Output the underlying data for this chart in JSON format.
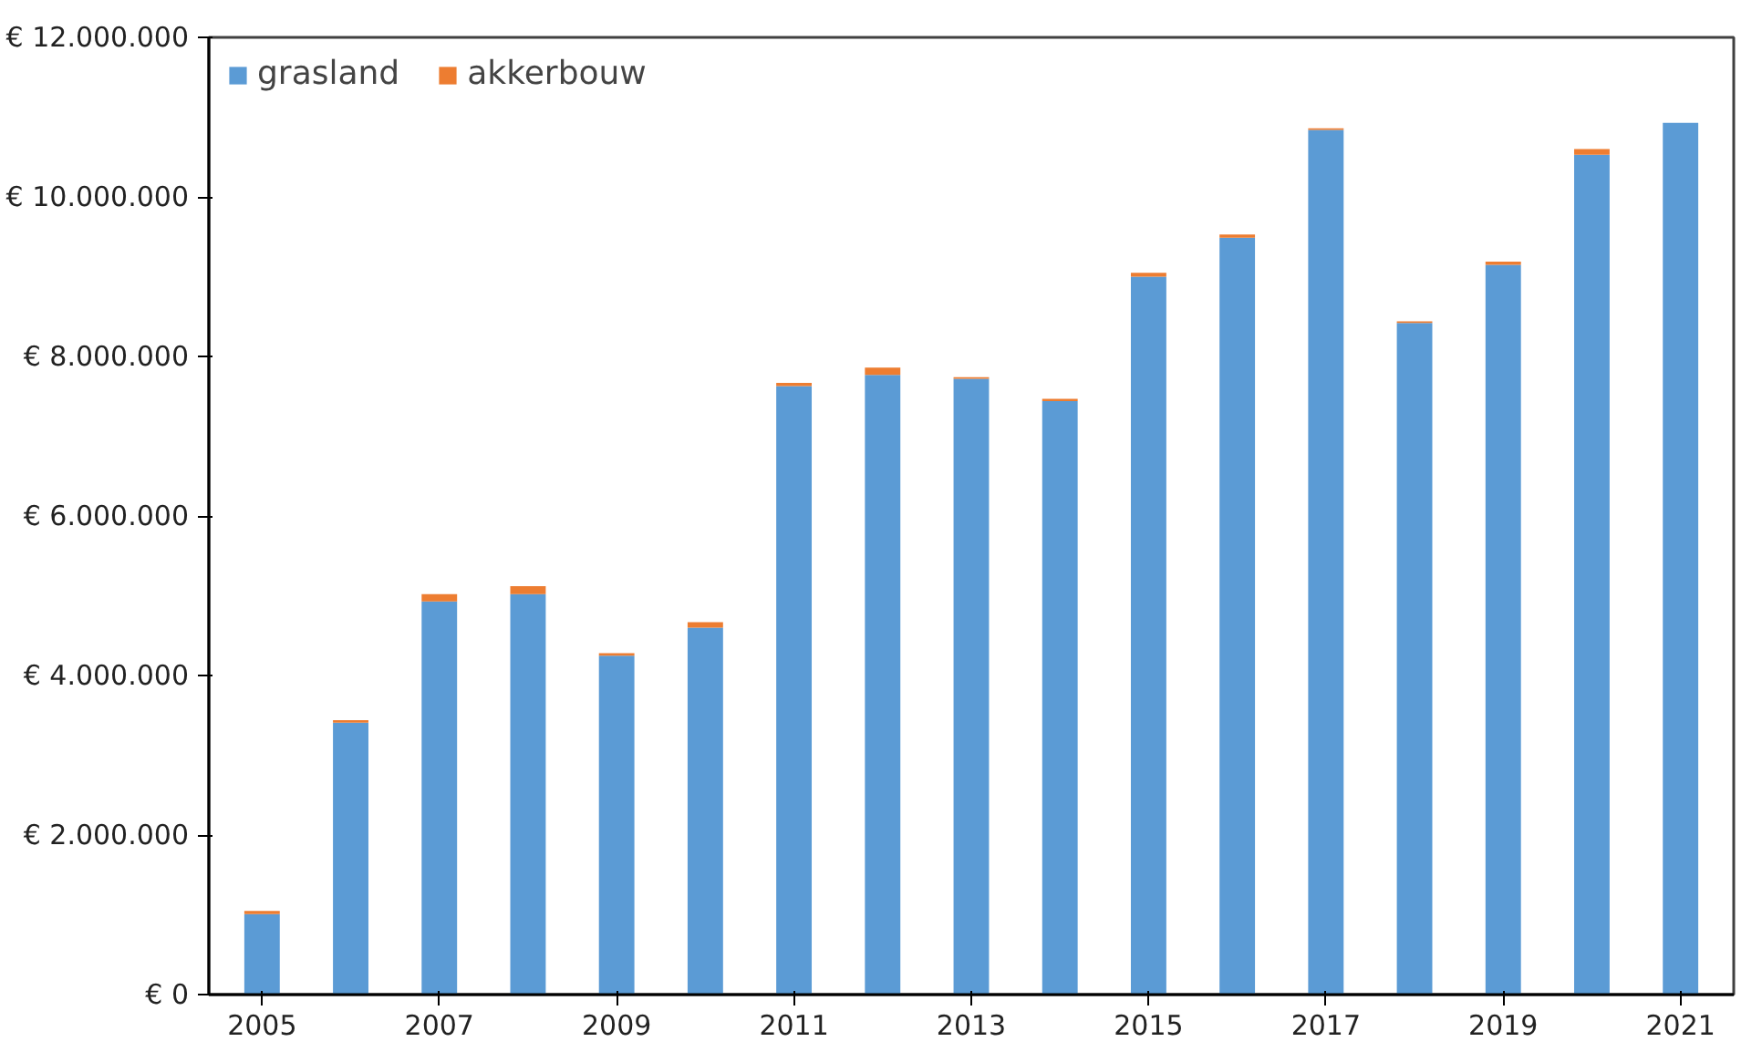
{
  "chart_data": {
    "type": "bar",
    "stacked": true,
    "categories": [
      "2005",
      null,
      "2007",
      null,
      "2009",
      null,
      "2011",
      null,
      "2013",
      null,
      "2015",
      null,
      "2017",
      null,
      "2019",
      null,
      "2021"
    ],
    "series": [
      {
        "name": "grasland",
        "color": "#5b9bd5",
        "values": [
          1010000,
          3410000,
          4930000,
          5020000,
          4250000,
          4600000,
          7630000,
          7770000,
          7720000,
          7440000,
          9000000,
          9490000,
          10840000,
          8420000,
          9150000,
          10530000,
          10930000
        ]
      },
      {
        "name": "akkerbouw",
        "color": "#ed7d31",
        "values": [
          40000,
          30000,
          90000,
          100000,
          30000,
          70000,
          40000,
          90000,
          20000,
          30000,
          50000,
          40000,
          20000,
          20000,
          40000,
          70000,
          0
        ]
      }
    ],
    "ylim": [
      0,
      12000000
    ],
    "yticks": [
      {
        "value": 0,
        "label": "€ 0"
      },
      {
        "value": 2000000,
        "label": "€ 2.000.000"
      },
      {
        "value": 4000000,
        "label": "€ 4.000.000"
      },
      {
        "value": 6000000,
        "label": "€ 6.000.000"
      },
      {
        "value": 8000000,
        "label": "€ 8.000.000"
      },
      {
        "value": 10000000,
        "label": "€ 10.000.000"
      },
      {
        "value": 12000000,
        "label": "€ 12.000.000"
      }
    ],
    "legend": "top left"
  }
}
